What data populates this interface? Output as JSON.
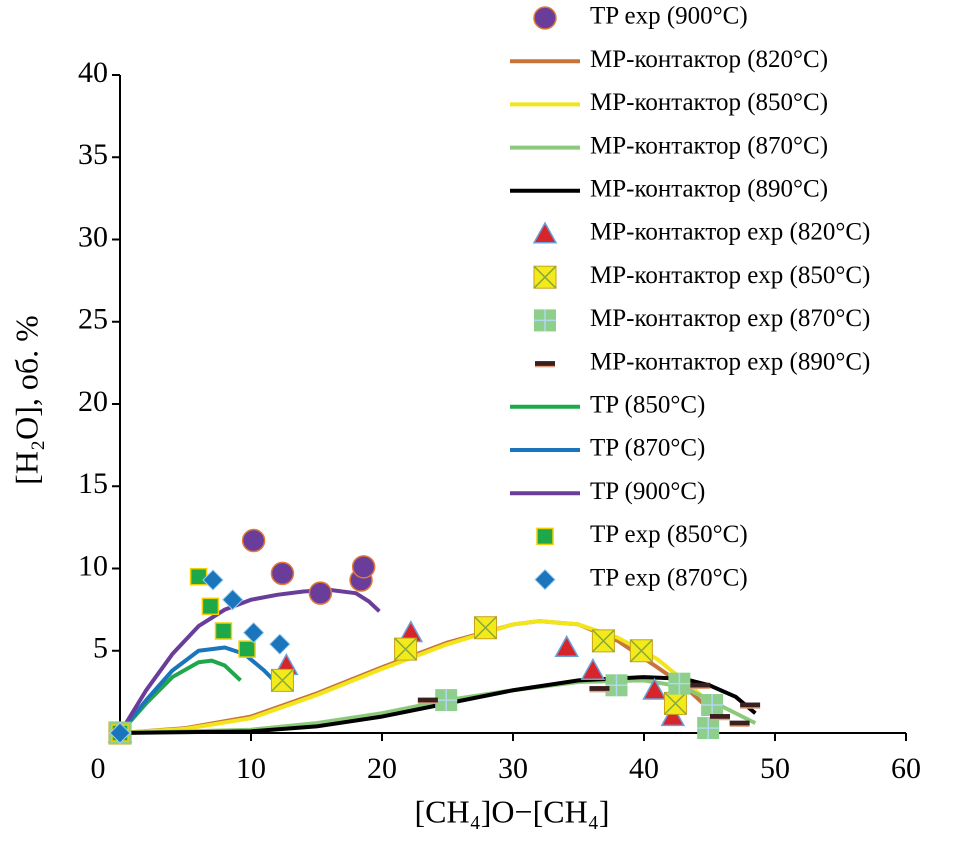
{
  "chart_data": {
    "type": "scatter",
    "x_label": "[CH₄]O−[CH₄]",
    "y_label": "[H₂O], об. %",
    "xlim": [
      0,
      60
    ],
    "xticks": [
      0,
      10,
      20,
      30,
      40,
      50,
      60
    ],
    "ylim": [
      0,
      40
    ],
    "yticks": [
      5,
      10,
      15,
      20,
      25,
      30,
      35,
      40
    ],
    "series": [
      {
        "name": "TP exp (900°C)",
        "kind": "circle",
        "color": "#6a3d9a",
        "x": [
          10.2,
          12.4,
          15.3,
          18.4,
          18.6
        ],
        "values": [
          11.7,
          9.7,
          8.5,
          9.3,
          10.1
        ]
      },
      {
        "name": "MP-контактор (820°C)",
        "kind": "line",
        "color": "#c8733a",
        "x": [
          0,
          5,
          10,
          15,
          20,
          25,
          30,
          32,
          35,
          38,
          41,
          43,
          44.5
        ],
        "values": [
          0,
          0.3,
          1.0,
          2.4,
          4.0,
          5.5,
          6.6,
          6.8,
          6.6,
          5.6,
          4.0,
          2.9,
          1.8
        ]
      },
      {
        "name": "MP-контактор (850°C)",
        "kind": "line",
        "color": "#f2e61a",
        "x": [
          0,
          5,
          10,
          15,
          20,
          25,
          30,
          32,
          35,
          38,
          41,
          43,
          44.5
        ],
        "values": [
          0,
          0.25,
          0.9,
          2.3,
          3.9,
          5.4,
          6.6,
          6.8,
          6.6,
          5.8,
          4.5,
          3.2,
          2.2
        ]
      },
      {
        "name": "MP-контактор (870°C)",
        "kind": "line",
        "color": "#8cc97a",
        "x": [
          0,
          10,
          15,
          20,
          25,
          30,
          35,
          40,
          43,
          45,
          47,
          48.5
        ],
        "values": [
          0,
          0.2,
          0.6,
          1.2,
          2.0,
          2.6,
          3.1,
          3.2,
          2.8,
          2.0,
          1.2,
          0.6
        ]
      },
      {
        "name": "MP-контактор (890°C)",
        "kind": "line",
        "color": "#000000",
        "x": [
          0,
          10,
          15,
          20,
          25,
          30,
          35,
          40,
          43,
          45,
          47,
          48.5
        ],
        "values": [
          0,
          0.1,
          0.4,
          1.0,
          1.8,
          2.6,
          3.2,
          3.4,
          3.3,
          2.9,
          2.2,
          1.2
        ]
      },
      {
        "name": "MP-контактор exp (820°C)",
        "kind": "triangle",
        "color": "#d7262b",
        "x": [
          0,
          12.7,
          22.2,
          34.1,
          36.1,
          40.8,
          42.2
        ],
        "values": [
          0,
          4.1,
          6.1,
          5.2,
          3.8,
          2.6,
          1.0
        ]
      },
      {
        "name": "MP-контактор exp (850°C)",
        "kind": "x-square",
        "color": "#f2ea1a",
        "x": [
          0,
          12.4,
          21.8,
          27.9,
          36.9,
          39.8,
          42.4
        ],
        "values": [
          0,
          3.2,
          5.1,
          6.4,
          5.6,
          5.0,
          1.8
        ]
      },
      {
        "name": "MP-контактор exp (870°C)",
        "kind": "plus-square",
        "color": "#8fcf8c",
        "x": [
          0,
          24.9,
          37.9,
          42.7,
          45.2,
          44.9
        ],
        "values": [
          0,
          2.0,
          2.9,
          3.0,
          1.7,
          0.3
        ]
      },
      {
        "name": "MP-контактор exp (890°C)",
        "kind": "dash",
        "color": "#3a1f1f",
        "x": [
          23.5,
          36.6,
          44.3,
          45.8,
          47.3,
          48.1
        ],
        "values": [
          2.0,
          2.7,
          2.9,
          1.0,
          0.6,
          1.7
        ]
      },
      {
        "name": "TP (850°C)",
        "kind": "line",
        "color": "#1ea84a",
        "x": [
          0,
          2,
          4,
          6,
          7,
          8,
          9.2
        ],
        "values": [
          0,
          1.8,
          3.4,
          4.3,
          4.4,
          4.1,
          3.2
        ]
      },
      {
        "name": "TP (870°C)",
        "kind": "line",
        "color": "#1b75bc",
        "x": [
          0,
          2,
          4,
          6,
          8,
          9.5,
          11,
          12.5
        ],
        "values": [
          0,
          2.0,
          3.8,
          5.0,
          5.2,
          4.8,
          3.8,
          2.6
        ]
      },
      {
        "name": "TP (900°C)",
        "kind": "line",
        "color": "#6a3d9a",
        "x": [
          0,
          2,
          4,
          6,
          8,
          10,
          12,
          14,
          16,
          18,
          19,
          19.8
        ],
        "values": [
          0,
          2.6,
          4.8,
          6.5,
          7.5,
          8.1,
          8.4,
          8.6,
          8.7,
          8.5,
          8.0,
          7.4
        ]
      },
      {
        "name": "TP exp (850°C)",
        "kind": "square",
        "color": "#1ea84a",
        "x": [
          0,
          6.0,
          6.9,
          7.9,
          9.7
        ],
        "values": [
          0,
          9.5,
          7.7,
          6.2,
          5.1
        ]
      },
      {
        "name": "TP exp (870°C)",
        "kind": "diamond",
        "color": "#1b75bc",
        "x": [
          0,
          7.1,
          8.6,
          10.2,
          12.2
        ],
        "values": [
          0,
          9.3,
          8.1,
          6.1,
          5.4
        ]
      }
    ]
  }
}
